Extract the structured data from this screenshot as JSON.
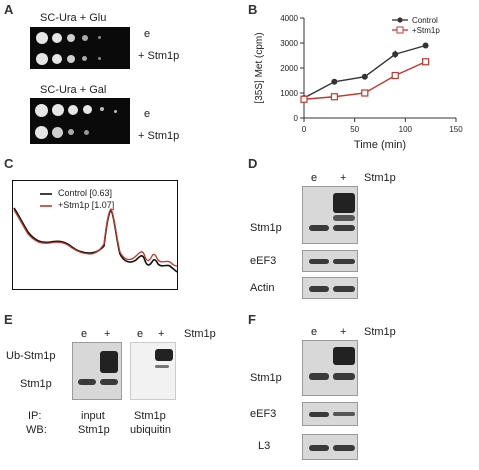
{
  "figure": {
    "panel_labels": {
      "A": "A",
      "B": "B",
      "C": "C",
      "D": "D",
      "E": "E",
      "F": "F"
    },
    "panelA": {
      "top_title": "SC-Ura + Glu",
      "bottom_title": "SC-Ura + Gal",
      "row_e": "e",
      "row_stm1p": "+ Stm1p"
    },
    "panelC": {
      "legend": [
        {
          "name": "Control [0.63]",
          "color": "#111111"
        },
        {
          "name": "+Stm1p [1.07]",
          "color": "#c0392b"
        }
      ]
    },
    "panelD": {
      "lane_e": "e",
      "lane_plus": "+",
      "lane_header": "Stm1p",
      "rows": [
        "Stm1p",
        "eEF3",
        "Actin"
      ]
    },
    "panelE": {
      "lane_e1": "e",
      "lane_plus1": "+",
      "lane_e2": "e",
      "lane_plus2": "+",
      "lane_header": "Stm1p",
      "row_ub": "Ub-Stm1p",
      "row_stm": "Stm1p",
      "ip_label": "IP:",
      "wb_label": "WB:",
      "ip1": "input",
      "wb1": "Stm1p",
      "ip2": "Stm1p",
      "wb2": "ubiquitin"
    },
    "panelF": {
      "lane_e": "e",
      "lane_plus": "+",
      "lane_header": "Stm1p",
      "rows": [
        "Stm1p",
        "eEF3",
        "L3"
      ]
    }
  },
  "chart_data": {
    "type": "line",
    "xlabel": "Time (min)",
    "ylabel": "[35S] Met (cpm)",
    "xlim": [
      0,
      150
    ],
    "ylim": [
      0,
      4000
    ],
    "xticks": [
      0,
      50,
      100,
      150
    ],
    "yticks": [
      0,
      1000,
      2000,
      3000,
      4000
    ],
    "legend_position": "top-right",
    "series": [
      {
        "name": "Control",
        "color": "#333333",
        "marker": "filled-circle",
        "x": [
          0,
          30,
          60,
          90,
          120
        ],
        "y": [
          800,
          1450,
          1650,
          2550,
          2900
        ]
      },
      {
        "name": "+Stm1p",
        "color": "#c0392b",
        "marker": "open-square",
        "x": [
          0,
          30,
          60,
          90,
          120
        ],
        "y": [
          750,
          850,
          1000,
          1700,
          2250
        ]
      }
    ]
  }
}
